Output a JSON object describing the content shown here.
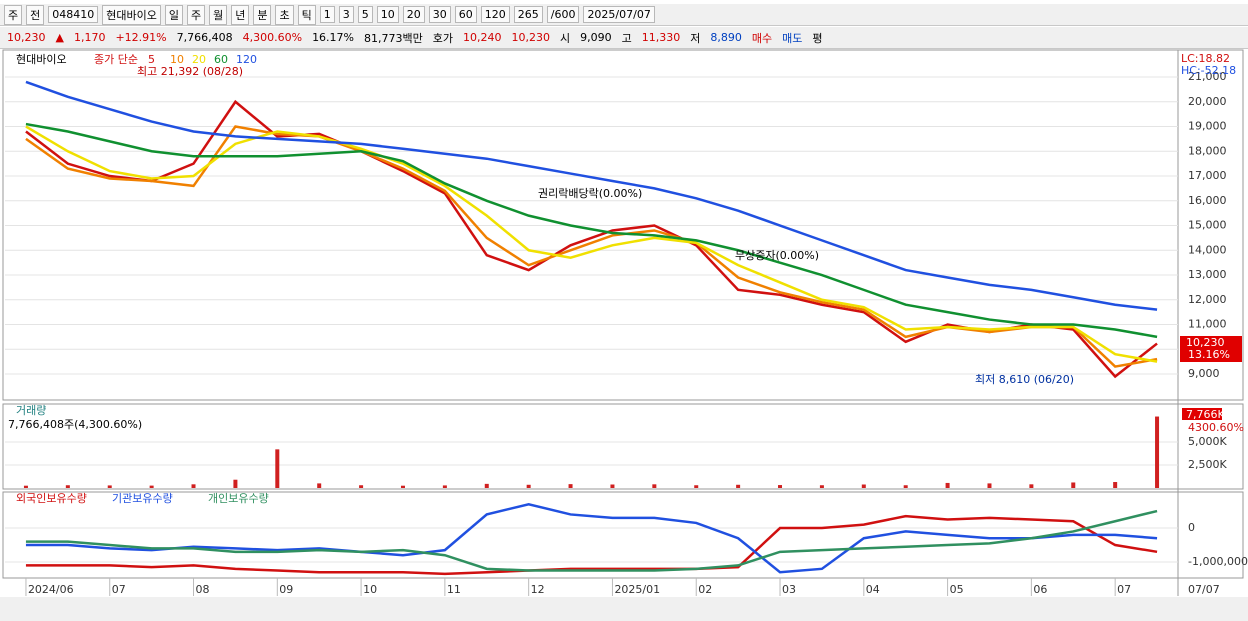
{
  "toolbar": {
    "items": [
      "주",
      "전",
      "048410",
      "현대바이오",
      "일",
      "주",
      "월",
      "년",
      "분",
      "초",
      "틱",
      "1",
      "3",
      "5",
      "10",
      "20",
      "30",
      "60",
      "120",
      "265",
      "/600",
      "2025/07/07"
    ]
  },
  "quote": {
    "items": [
      "10,230",
      "▲",
      "1,170",
      "+12.91%",
      "7,766,408",
      "4,300.60%",
      "16.17%",
      "81,773백만",
      "호가",
      "10,240",
      "10,230",
      "시",
      "9,090",
      "고",
      "11,330",
      "저",
      "8,890",
      "매수",
      "매도",
      "평"
    ]
  },
  "x_labels": [
    "2024/06",
    null,
    "07",
    null,
    "08",
    null,
    "09",
    null,
    "10",
    null,
    "11",
    null,
    "12",
    null,
    "2025/01",
    null,
    "02",
    null,
    "03",
    null,
    "04",
    null,
    "05",
    null,
    "06",
    null,
    "07",
    null
  ],
  "x_end_label": "07/07",
  "chart_data": [
    {
      "type": "line",
      "title": "현대바이오",
      "subtitle": "종가 단순",
      "ylim": [
        7950,
        21890
      ],
      "yticks": [
        {
          "value": 9000,
          "label": "9,000"
        },
        {
          "value": 10000,
          "label": "10,000"
        },
        {
          "value": 11000,
          "label": "11,000"
        },
        {
          "value": 12000,
          "label": "12,000"
        },
        {
          "value": 13000,
          "label": "13,000"
        },
        {
          "value": 14000,
          "label": "14,000"
        },
        {
          "value": 15000,
          "label": "15,000"
        },
        {
          "value": 16000,
          "label": "16,000"
        },
        {
          "value": 17000,
          "label": "17,000"
        },
        {
          "value": 18000,
          "label": "18,000"
        },
        {
          "value": 19000,
          "label": "19,000"
        },
        {
          "value": 20000,
          "label": "20,000"
        },
        {
          "value": 21000,
          "label": "21,000"
        }
      ],
      "series": [
        {
          "name": "5",
          "color": "#d01010",
          "values": [
            18800,
            17500,
            17000,
            16800,
            17500,
            20000,
            18600,
            18700,
            18000,
            17200,
            16300,
            13800,
            13200,
            14200,
            14800,
            15000,
            14200,
            12400,
            12200,
            11800,
            11500,
            10300,
            11000,
            10700,
            11000,
            10800,
            8900,
            10230
          ]
        },
        {
          "name": "10",
          "color": "#f08000",
          "values": [
            18500,
            17300,
            16900,
            16800,
            16600,
            19000,
            18700,
            18600,
            18000,
            17300,
            16400,
            14500,
            13400,
            14000,
            14600,
            14800,
            14300,
            12900,
            12300,
            11900,
            11600,
            10500,
            10900,
            10700,
            10900,
            10900,
            9300,
            9600
          ]
        },
        {
          "name": "20",
          "color": "#f0e000",
          "values": [
            19000,
            18000,
            17200,
            16900,
            17000,
            18300,
            18800,
            18600,
            18100,
            17500,
            16600,
            15400,
            14000,
            13700,
            14200,
            14500,
            14300,
            13400,
            12700,
            12000,
            11700,
            10800,
            10900,
            10800,
            10900,
            10900,
            9800,
            9500
          ]
        },
        {
          "name": "60",
          "color": "#109030",
          "values": [
            19100,
            18800,
            18400,
            18000,
            17800,
            17800,
            17800,
            17900,
            18000,
            17600,
            16700,
            16000,
            15400,
            15000,
            14700,
            14600,
            14400,
            14000,
            13500,
            13000,
            12400,
            11800,
            11500,
            11200,
            11000,
            11000,
            10800,
            10500
          ]
        },
        {
          "name": "120",
          "color": "#2050e0",
          "values": [
            20800,
            20200,
            19700,
            19200,
            18800,
            18600,
            18500,
            18400,
            18300,
            18100,
            17900,
            17700,
            17400,
            17100,
            16800,
            16500,
            16100,
            15600,
            15000,
            14400,
            13800,
            13200,
            12900,
            12600,
            12400,
            12100,
            11800,
            11600
          ]
        }
      ],
      "annotations": [
        "최고 21,392 (08/28)",
        "권리락배당락(0.00%)",
        "무상증자(0.00%)",
        "최저 8,610 (06/20)"
      ],
      "side_labels": [
        "LC:18.82",
        "HC:-52.18",
        "10,230",
        "13.16%"
      ]
    },
    {
      "type": "bar",
      "title": "거래량",
      "subtitle": "7,766,408주(4,300.60%)",
      "color": "#d02020",
      "ylim": [
        0,
        8260000
      ],
      "yticks": [
        {
          "value": 2500000,
          "label": "2,500K"
        },
        {
          "value": 5000000,
          "label": "5,000K"
        }
      ],
      "values": [
        250000,
        300000,
        280000,
        260000,
        400000,
        900000,
        4200000,
        500000,
        300000,
        250000,
        280000,
        450000,
        350000,
        420000,
        380000,
        400000,
        300000,
        350000,
        320000,
        300000,
        380000,
        300000,
        550000,
        500000,
        400000,
        600000,
        650000,
        7766408
      ],
      "side_labels": [
        "7,766K",
        "4300.60%"
      ]
    },
    {
      "type": "line",
      "ylim": [
        -1470000,
        1060000
      ],
      "yticks": [
        {
          "value": 0,
          "label": "0"
        },
        {
          "value": -1000000,
          "label": "-1,000,000"
        }
      ],
      "series": [
        {
          "name": "외국인보유수량",
          "color": "#d01010",
          "values": [
            -1100000,
            -1100000,
            -1100000,
            -1150000,
            -1100000,
            -1200000,
            -1250000,
            -1300000,
            -1300000,
            -1300000,
            -1350000,
            -1300000,
            -1250000,
            -1200000,
            -1200000,
            -1200000,
            -1200000,
            -1150000,
            0,
            0,
            100000,
            350000,
            250000,
            300000,
            250000,
            200000,
            -500000,
            -700000
          ]
        },
        {
          "name": "기관보유수량",
          "color": "#2050e0",
          "values": [
            -500000,
            -500000,
            -600000,
            -650000,
            -550000,
            -600000,
            -650000,
            -600000,
            -700000,
            -800000,
            -650000,
            400000,
            700000,
            400000,
            300000,
            300000,
            150000,
            -300000,
            -1300000,
            -1200000,
            -300000,
            -100000,
            -200000,
            -300000,
            -300000,
            -200000,
            -200000,
            -300000
          ]
        },
        {
          "name": "개인보유수량",
          "color": "#309060",
          "values": [
            -400000,
            -400000,
            -500000,
            -600000,
            -600000,
            -700000,
            -700000,
            -650000,
            -700000,
            -650000,
            -800000,
            -1200000,
            -1250000,
            -1250000,
            -1250000,
            -1250000,
            -1200000,
            -1100000,
            -700000,
            -650000,
            -600000,
            -550000,
            -500000,
            -450000,
            -300000,
            -100000,
            200000,
            500000
          ]
        }
      ]
    }
  ]
}
